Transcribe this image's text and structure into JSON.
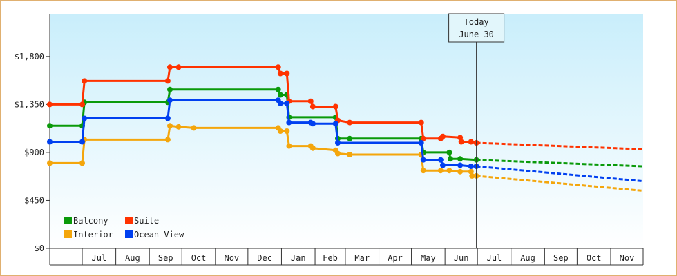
{
  "chart_data": {
    "type": "line",
    "title": "",
    "xlabel": "",
    "ylabel": "",
    "ylim": [
      0,
      2200
    ],
    "y_ticks": [
      0,
      450,
      900,
      1350,
      1800
    ],
    "y_tick_labels": [
      "$0",
      "$450",
      "$900",
      "$1,350",
      "$1,800"
    ],
    "x_range": [
      "2012-06-01",
      "2013-12-01"
    ],
    "month_labels": [
      "Jul",
      "Aug",
      "Sep",
      "Oct",
      "Nov",
      "Dec",
      "Jan",
      "Feb",
      "Mar",
      "Apr",
      "May",
      "Jun",
      "Jul",
      "Aug",
      "Sep",
      "Oct",
      "Nov"
    ],
    "legend_position": "bottom-left",
    "background": "gradient light-blue to white",
    "annotation": {
      "date": "2013-06-30",
      "line1": "Today",
      "line2": "June 30"
    },
    "series": [
      {
        "name": "Balcony",
        "color": "#0a9a0a",
        "points": [
          [
            "2012-06-01",
            1150
          ],
          [
            "2012-07-01",
            1150
          ],
          [
            "2012-07-03",
            1370
          ],
          [
            "2012-09-18",
            1370
          ],
          [
            "2012-09-20",
            1490
          ],
          [
            "2012-12-29",
            1490
          ],
          [
            "2012-12-31",
            1440
          ],
          [
            "2013-01-06",
            1440
          ],
          [
            "2013-01-08",
            1230
          ],
          [
            "2013-02-20",
            1230
          ],
          [
            "2013-02-22",
            1030
          ],
          [
            "2013-03-05",
            1030
          ],
          [
            "2013-05-10",
            1030
          ],
          [
            "2013-05-12",
            900
          ],
          [
            "2013-06-05",
            900
          ],
          [
            "2013-06-06",
            840
          ],
          [
            "2013-06-15",
            840
          ],
          [
            "2013-06-30",
            830
          ]
        ],
        "forecast": [
          [
            "2013-06-30",
            830
          ],
          [
            "2013-12-01",
            770
          ]
        ]
      },
      {
        "name": "Suite",
        "color": "#ff3300",
        "points": [
          [
            "2012-06-01",
            1350
          ],
          [
            "2012-07-01",
            1350
          ],
          [
            "2012-07-03",
            1570
          ],
          [
            "2012-09-18",
            1570
          ],
          [
            "2012-09-20",
            1700
          ],
          [
            "2012-09-28",
            1700
          ],
          [
            "2012-12-29",
            1700
          ],
          [
            "2012-12-31",
            1640
          ],
          [
            "2013-01-06",
            1640
          ],
          [
            "2013-01-08",
            1380
          ],
          [
            "2013-01-28",
            1380
          ],
          [
            "2013-01-30",
            1330
          ],
          [
            "2013-02-20",
            1330
          ],
          [
            "2013-02-22",
            1200
          ],
          [
            "2013-03-05",
            1180
          ],
          [
            "2013-05-10",
            1180
          ],
          [
            "2013-05-12",
            1030
          ],
          [
            "2013-05-28",
            1030
          ],
          [
            "2013-05-30",
            1050
          ],
          [
            "2013-06-15",
            1040
          ],
          [
            "2013-06-16",
            1000
          ],
          [
            "2013-06-25",
            1000
          ],
          [
            "2013-06-30",
            990
          ]
        ],
        "forecast": [
          [
            "2013-06-30",
            990
          ],
          [
            "2013-12-01",
            930
          ]
        ]
      },
      {
        "name": "Interior",
        "color": "#f4a60c",
        "points": [
          [
            "2012-06-01",
            800
          ],
          [
            "2012-07-01",
            800
          ],
          [
            "2012-07-03",
            1020
          ],
          [
            "2012-09-18",
            1020
          ],
          [
            "2012-09-20",
            1150
          ],
          [
            "2012-09-28",
            1140
          ],
          [
            "2012-10-12",
            1130
          ],
          [
            "2012-12-29",
            1130
          ],
          [
            "2012-12-31",
            1100
          ],
          [
            "2013-01-06",
            1100
          ],
          [
            "2013-01-08",
            960
          ],
          [
            "2013-01-28",
            960
          ],
          [
            "2013-01-30",
            940
          ],
          [
            "2013-02-20",
            920
          ],
          [
            "2013-02-22",
            890
          ],
          [
            "2013-03-05",
            880
          ],
          [
            "2013-05-10",
            880
          ],
          [
            "2013-05-12",
            730
          ],
          [
            "2013-05-28",
            730
          ],
          [
            "2013-06-05",
            730
          ],
          [
            "2013-06-15",
            720
          ],
          [
            "2013-06-25",
            720
          ],
          [
            "2013-06-26",
            680
          ],
          [
            "2013-06-30",
            680
          ]
        ],
        "forecast": [
          [
            "2013-06-30",
            680
          ],
          [
            "2013-12-01",
            540
          ]
        ]
      },
      {
        "name": "Ocean View",
        "color": "#0040f0",
        "points": [
          [
            "2012-06-01",
            1000
          ],
          [
            "2012-07-01",
            1000
          ],
          [
            "2012-07-03",
            1220
          ],
          [
            "2012-09-18",
            1220
          ],
          [
            "2012-09-20",
            1390
          ],
          [
            "2012-12-29",
            1390
          ],
          [
            "2012-12-31",
            1360
          ],
          [
            "2013-01-06",
            1360
          ],
          [
            "2013-01-08",
            1180
          ],
          [
            "2013-01-28",
            1180
          ],
          [
            "2013-01-30",
            1170
          ],
          [
            "2013-02-20",
            1170
          ],
          [
            "2013-02-22",
            990
          ],
          [
            "2013-05-10",
            990
          ],
          [
            "2013-05-12",
            830
          ],
          [
            "2013-05-28",
            830
          ],
          [
            "2013-05-30",
            780
          ],
          [
            "2013-06-15",
            780
          ],
          [
            "2013-06-25",
            770
          ],
          [
            "2013-06-30",
            770
          ]
        ],
        "forecast": [
          [
            "2013-06-30",
            770
          ],
          [
            "2013-12-01",
            630
          ]
        ]
      }
    ]
  }
}
